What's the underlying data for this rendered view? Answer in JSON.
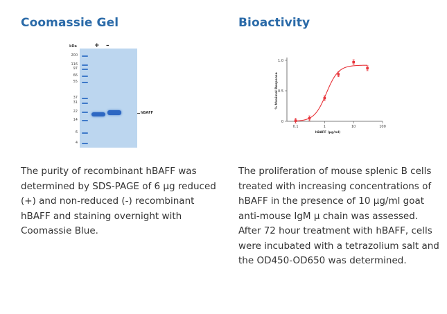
{
  "left": {
    "title": "Coomassie Gel",
    "figure": {
      "kda_label": "kDa",
      "lane_labels": [
        "+",
        "–"
      ],
      "markers": [
        "200",
        "116",
        "97",
        "66",
        "55",
        "37",
        "31",
        "22",
        "14",
        "6",
        "4"
      ],
      "band_label": "hBAFF"
    },
    "description": "The purity of recombinant hBAFF was determined by SDS-PAGE of 6 µg reduced (+) and non-reduced (-) recombinant hBAFF and staining overnight with Coomassie Blue."
  },
  "right": {
    "title": "Bioactivity",
    "description": "The proliferation of mouse splenic B cells treated with increasing concentrations of hBAFF in the presence of 10 µg/ml goat anti-mouse IgM µ chain was assessed. After 72 hour treatment with hBAFF, cells were incubated with a tetrazolium salt and the OD450-OD650 was determined."
  },
  "chart_data": {
    "type": "scatter",
    "xlabel": "hBAFF (µg/ml)",
    "ylabel": "% Maximal Response",
    "x_scale": "log",
    "xlim": [
      0.05,
      100
    ],
    "ylim": [
      0,
      1.0
    ],
    "x_ticks": [
      "0.1",
      "1",
      "10",
      "100"
    ],
    "y_ticks": [
      "0",
      "0.5",
      "1.0"
    ],
    "x_tick_values": [
      0.1,
      1,
      10,
      100
    ],
    "y_tick_values": [
      0,
      0.5,
      1.0
    ],
    "grid": false,
    "series": [
      {
        "points": [
          {
            "x": 0.1,
            "y": 0.01
          },
          {
            "x": 0.3,
            "y": 0.05
          },
          {
            "x": 1,
            "y": 0.38
          },
          {
            "x": 3,
            "y": 0.77
          },
          {
            "x": 10,
            "y": 0.97
          },
          {
            "x": 30,
            "y": 0.87
          }
        ],
        "color": "#e8343a"
      }
    ]
  }
}
